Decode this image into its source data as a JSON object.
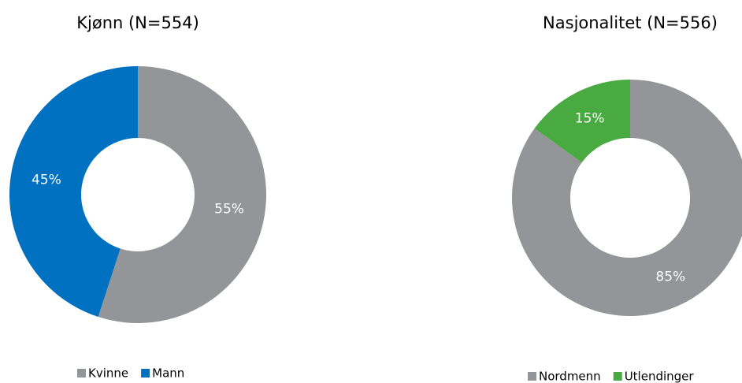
{
  "chart_data": [
    {
      "type": "donut",
      "title": "Kjønn (N=554)",
      "categories": [
        "Kvinne",
        "Mann"
      ],
      "values": [
        55,
        45
      ],
      "value_labels": [
        "55%",
        "45%"
      ],
      "colors": [
        "#939598",
        "#0070c0"
      ],
      "legend": "bottom"
    },
    {
      "type": "donut",
      "title": "Nasjonalitet (N=556)",
      "categories": [
        "Nordmenn",
        "Utlendinger"
      ],
      "values": [
        85,
        15
      ],
      "value_labels": [
        "85%",
        "15%"
      ],
      "colors": [
        "#939598",
        "#4aaa42"
      ],
      "legend": "bottom"
    }
  ]
}
